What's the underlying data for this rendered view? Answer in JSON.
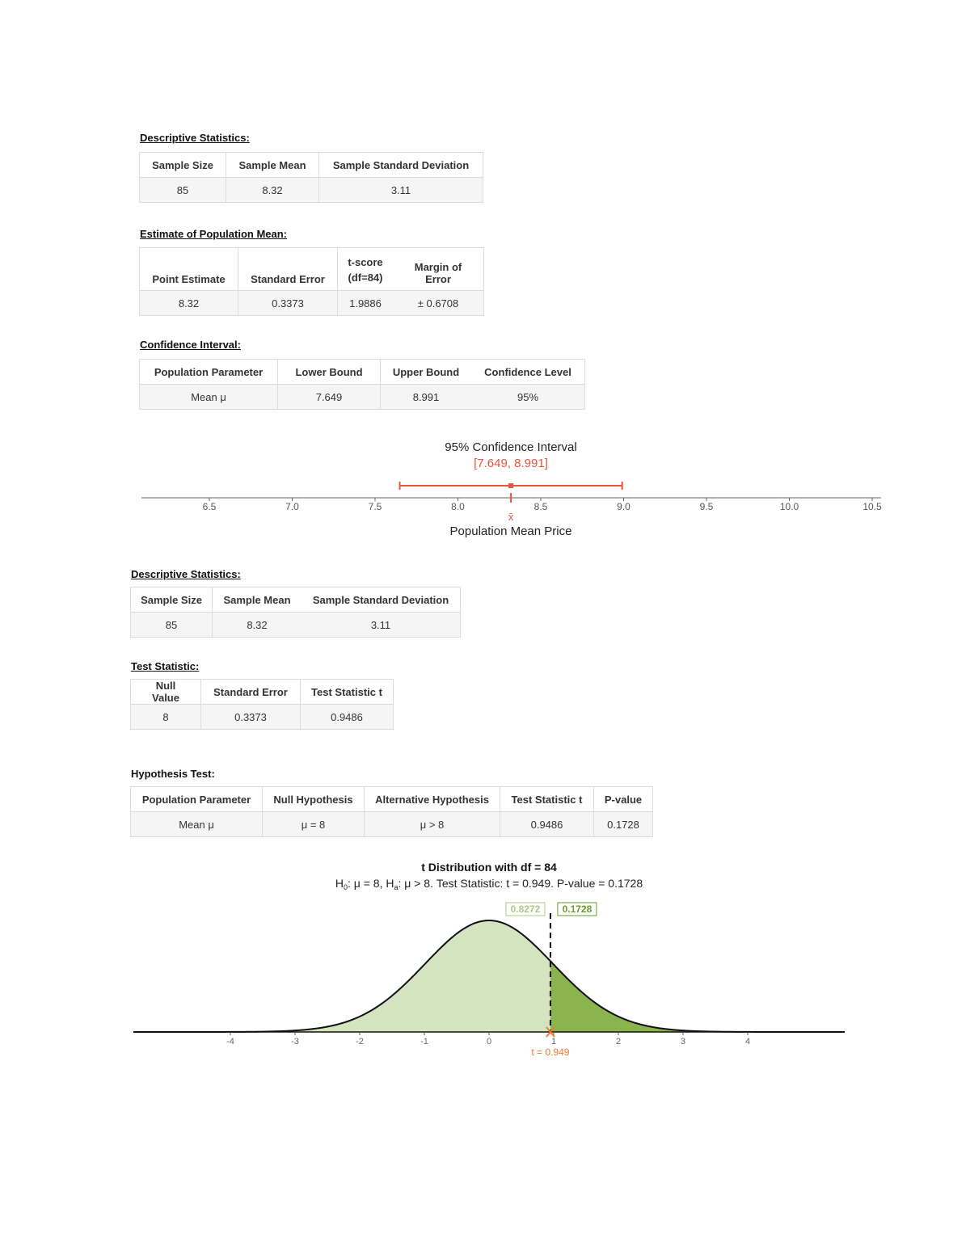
{
  "desc1": {
    "title": "Descriptive Statistics:",
    "headers": [
      "Sample Size",
      "Sample Mean",
      "Sample Standard Deviation"
    ],
    "values": [
      "85",
      "8.32",
      "3.11"
    ]
  },
  "estimate": {
    "title": "Estimate of Population Mean:",
    "headers": [
      "Point Estimate",
      "Standard Error",
      "t-score",
      "(df=84)",
      "Margin of Error"
    ],
    "values": [
      "8.32",
      "0.3373",
      "1.9886",
      "± 0.6708"
    ]
  },
  "ci": {
    "title": "Confidence Interval:",
    "headers": [
      "Population Parameter",
      "Lower Bound",
      "Upper Bound",
      "Confidence Level"
    ],
    "values": [
      "Mean μ",
      "7.649",
      "8.991",
      "95%"
    ]
  },
  "ci_plot": {
    "title": "95% Confidence Interval",
    "interval_label": "[7.649, 8.991]",
    "xlabel": "Population Mean Price",
    "xbar_label": "x̄",
    "lower": 7.649,
    "upper": 8.991,
    "mean": 8.32,
    "ticks": [
      "6.5",
      "7.0",
      "7.5",
      "8.0",
      "8.5",
      "9.0",
      "9.5",
      "10.0",
      "10.5"
    ],
    "accent_color": "#e8543f"
  },
  "desc2": {
    "title": "Descriptive Statistics:",
    "headers": [
      "Sample Size",
      "Sample Mean",
      "Sample Standard Deviation"
    ],
    "values": [
      "85",
      "8.32",
      "3.11"
    ]
  },
  "teststat": {
    "title": "Test Statistic:",
    "headers": [
      "Null Value",
      "Standard Error",
      "Test Statistic t"
    ],
    "values": [
      "8",
      "0.3373",
      "0.9486"
    ]
  },
  "hyp": {
    "title": "Hypothesis Test:",
    "headers": [
      "Population Parameter",
      "Null Hypothesis",
      "Alternative Hypothesis",
      "Test Statistic t",
      "P-value"
    ],
    "values": [
      "Mean μ",
      "μ = 8",
      "μ > 8",
      "0.9486",
      "0.1728"
    ]
  },
  "chart_data": {
    "type": "area",
    "title": "t Distribution with df = 84",
    "subtitle_h0": "H",
    "subtitle_h0_sub": "0",
    "subtitle_mid": ": μ = 8, H",
    "subtitle_ha_sub": "a",
    "subtitle_rest": ": μ > 8. Test Statistic: t = 0.949. P-value = 0.1728",
    "df": 84,
    "t_stat": 0.949,
    "left_area": 0.8272,
    "right_area": 0.1728,
    "left_area_label": "0.8272",
    "right_area_label": "0.1728",
    "t_label": "t = 0.949",
    "xticks": [
      "-4",
      "-3",
      "-2",
      "-1",
      "0",
      "1",
      "2",
      "3",
      "4"
    ],
    "colors": {
      "light": "#d5e4c0",
      "dark": "#8cb44e",
      "marker": "#f07830",
      "light_text": "#a9c88a",
      "dark_text": "#6b9a2f"
    }
  }
}
